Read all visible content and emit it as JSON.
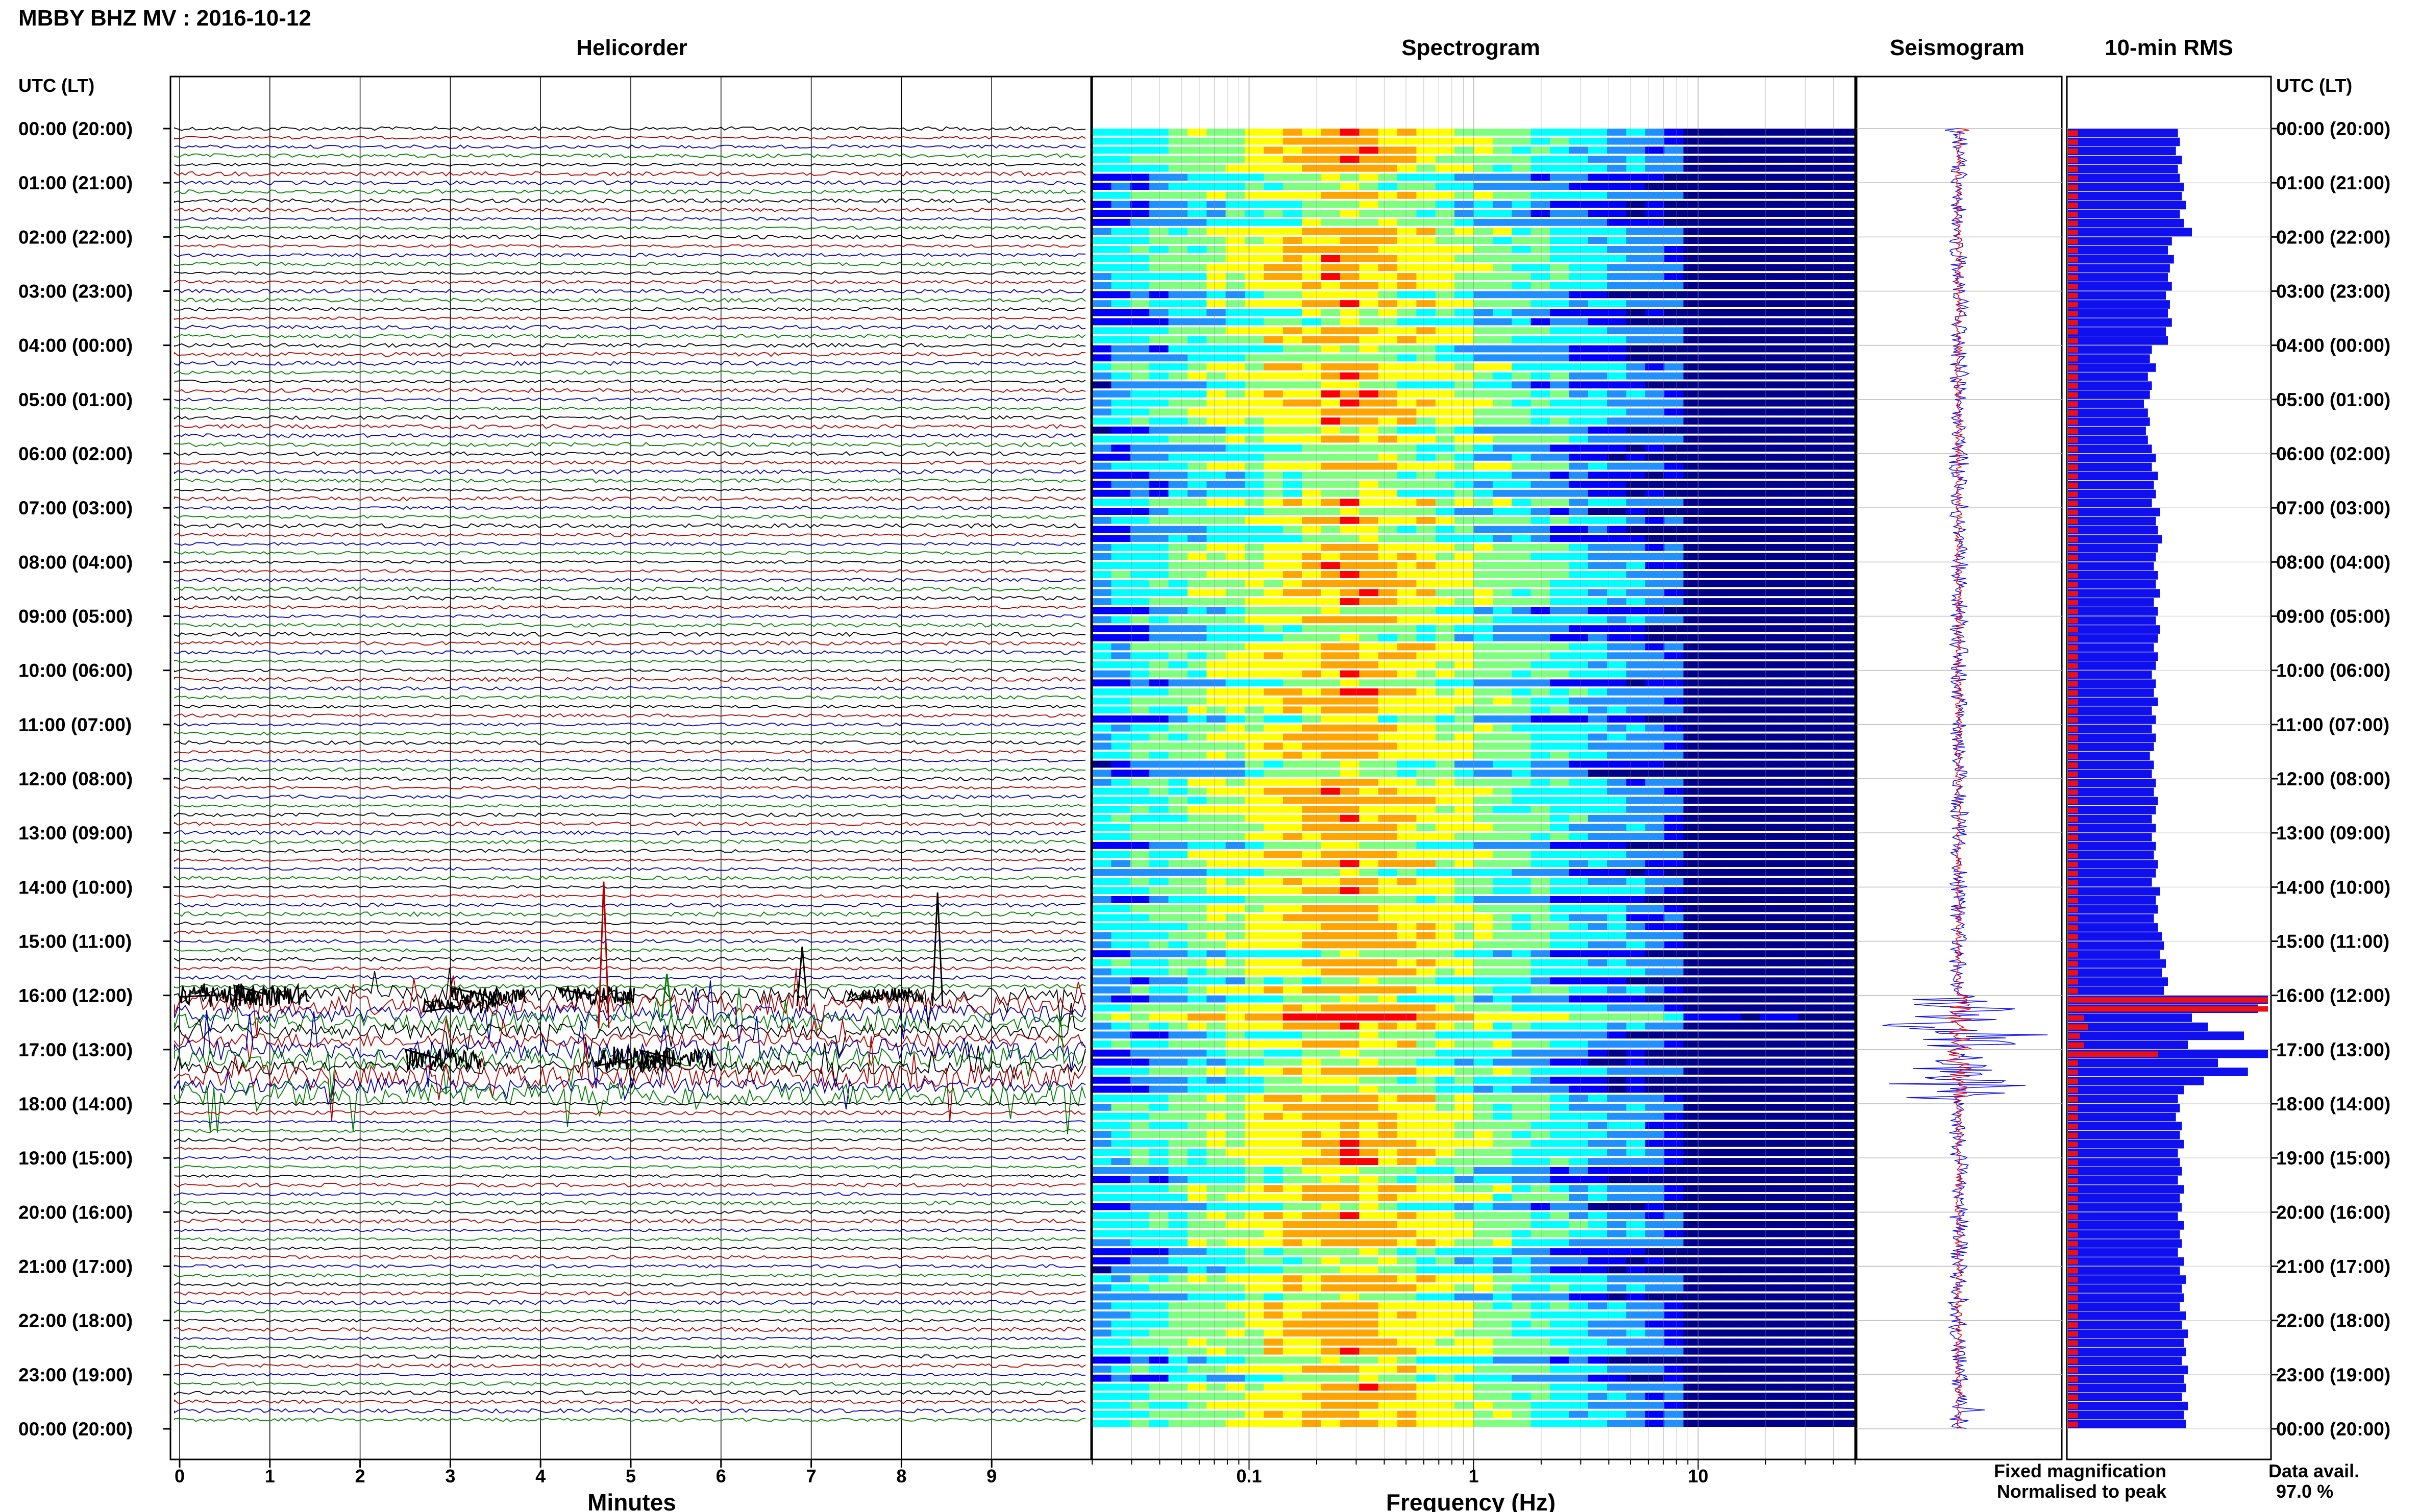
{
  "header": {
    "station_title": "MBBY BHZ MV : 2016-10-12",
    "time_axis_label": "UTC (LT)"
  },
  "panels": {
    "helicorder_title": "Helicorder",
    "spectrogram_title": "Spectrogram",
    "seismogram_title": "Seismogram",
    "rms_title": "10-min RMS"
  },
  "legend": {
    "fixed": "Fixed magnification",
    "normalised": "Normalised to peak",
    "fixed_color": "#1010ee",
    "normalised_color": "#ee1010"
  },
  "data_availability": {
    "label": "Data avail.",
    "value": "97.0 %"
  },
  "chart_data": [
    {
      "type": "line",
      "name": "helicorder",
      "title": "Helicorder",
      "xlabel": "Minutes",
      "x_ticks": [
        "0",
        "1",
        "2",
        "3",
        "4",
        "5",
        "6",
        "7",
        "8",
        "9"
      ],
      "xlim": [
        0,
        10
      ],
      "y_ticks": [
        "00:00 (20:00)",
        "01:00 (21:00)",
        "02:00 (22:00)",
        "03:00 (23:00)",
        "04:00 (00:00)",
        "05:00 (01:00)",
        "06:00 (02:00)",
        "07:00 (03:00)",
        "08:00 (04:00)",
        "09:00 (05:00)",
        "10:00 (06:00)",
        "11:00 (07:00)",
        "12:00 (08:00)",
        "13:00 (09:00)",
        "14:00 (10:00)",
        "15:00 (11:00)",
        "16:00 (12:00)",
        "17:00 (13:00)",
        "18:00 (14:00)",
        "19:00 (15:00)",
        "20:00 (16:00)",
        "21:00 (17:00)",
        "22:00 (18:00)",
        "23:00 (19:00)",
        "00:00 (20:00)"
      ],
      "trace_colors": [
        "#000000",
        "#b00000",
        "#0000b0",
        "#008000"
      ],
      "lines_per_hour": 6,
      "active_period_utc": [
        "16:00",
        "17:50"
      ]
    },
    {
      "type": "heatmap",
      "name": "spectrogram",
      "title": "Spectrogram",
      "xlabel": "Frequency (Hz)",
      "x_scale": "log",
      "xlim": [
        0.02,
        50
      ],
      "x_ticks": [
        "0.1",
        "1",
        "10"
      ],
      "x_tick_values": [
        0.1,
        1,
        10
      ],
      "colormap": [
        "#00008b",
        "#0000ff",
        "#1e90ff",
        "#00ffff",
        "#7fff7f",
        "#ffff00",
        "#ffa500",
        "#ff0000"
      ],
      "peak_band_hz": [
        0.15,
        0.5
      ]
    },
    {
      "type": "line",
      "name": "seismogram",
      "title": "Seismogram",
      "series": [
        {
          "name": "Fixed magnification",
          "color": "#1010ee"
        },
        {
          "name": "Normalised to peak",
          "color": "#ee1010"
        }
      ]
    },
    {
      "type": "bar",
      "name": "10-min-rms",
      "title": "10-min RMS",
      "orientation": "horizontal",
      "intervals_per_hour": 6,
      "series": [
        {
          "name": "Fixed magnification",
          "color": "#1010ee",
          "values": [
            0.55,
            0.56,
            0.54,
            0.57,
            0.55,
            0.56,
            0.58,
            0.57,
            0.59,
            0.56,
            0.58,
            0.62,
            0.52,
            0.5,
            0.53,
            0.51,
            0.5,
            0.52,
            0.49,
            0.51,
            0.5,
            0.52,
            0.49,
            0.5,
            0.42,
            0.41,
            0.44,
            0.4,
            0.42,
            0.41,
            0.38,
            0.4,
            0.41,
            0.39,
            0.4,
            0.42,
            0.44,
            0.42,
            0.45,
            0.43,
            0.44,
            0.42,
            0.46,
            0.44,
            0.45,
            0.47,
            0.45,
            0.44,
            0.43,
            0.45,
            0.44,
            0.46,
            0.43,
            0.45,
            0.44,
            0.46,
            0.45,
            0.43,
            0.45,
            0.44,
            0.42,
            0.44,
            0.43,
            0.45,
            0.42,
            0.44,
            0.42,
            0.44,
            0.43,
            0.41,
            0.43,
            0.42,
            0.44,
            0.43,
            0.45,
            0.44,
            0.42,
            0.44,
            0.42,
            0.44,
            0.43,
            0.45,
            0.44,
            0.42,
            0.46,
            0.44,
            0.45,
            0.43,
            0.45,
            0.47,
            0.48,
            0.46,
            0.49,
            0.47,
            0.5,
            0.48,
            1.0,
            0.95,
            0.62,
            0.7,
            0.88,
            0.6,
            1.0,
            0.75,
            0.9,
            0.68,
            0.58,
            0.55,
            0.56,
            0.54,
            0.57,
            0.56,
            0.58,
            0.55,
            0.56,
            0.57,
            0.55,
            0.58,
            0.56,
            0.57,
            0.55,
            0.58,
            0.56,
            0.57,
            0.55,
            0.58,
            0.56,
            0.59,
            0.57,
            0.58,
            0.56,
            0.59,
            0.57,
            0.6,
            0.58,
            0.59,
            0.57,
            0.6,
            0.58,
            0.59,
            0.57,
            0.6,
            0.58,
            0.59
          ]
        },
        {
          "name": "Normalised to peak",
          "color": "#ee1010",
          "values": [
            0.05,
            0.05,
            0.05,
            0.05,
            0.05,
            0.05,
            0.05,
            0.05,
            0.05,
            0.05,
            0.05,
            0.05,
            0.05,
            0.05,
            0.05,
            0.05,
            0.05,
            0.05,
            0.05,
            0.05,
            0.05,
            0.05,
            0.05,
            0.05,
            0.05,
            0.05,
            0.05,
            0.05,
            0.05,
            0.05,
            0.05,
            0.05,
            0.05,
            0.05,
            0.05,
            0.05,
            0.05,
            0.05,
            0.05,
            0.05,
            0.05,
            0.05,
            0.05,
            0.05,
            0.05,
            0.05,
            0.05,
            0.05,
            0.05,
            0.05,
            0.05,
            0.05,
            0.05,
            0.05,
            0.05,
            0.05,
            0.05,
            0.05,
            0.05,
            0.05,
            0.05,
            0.05,
            0.05,
            0.05,
            0.05,
            0.05,
            0.05,
            0.05,
            0.05,
            0.05,
            0.05,
            0.05,
            0.05,
            0.05,
            0.05,
            0.05,
            0.05,
            0.05,
            0.05,
            0.05,
            0.05,
            0.05,
            0.05,
            0.05,
            0.05,
            0.05,
            0.05,
            0.05,
            0.05,
            0.05,
            0.05,
            0.05,
            0.05,
            0.05,
            0.05,
            0.05,
            1.0,
            1.0,
            0.08,
            0.1,
            0.06,
            0.08,
            0.45,
            0.05,
            0.05,
            0.05,
            0.05,
            0.05,
            0.05,
            0.05,
            0.05,
            0.05,
            0.05,
            0.05,
            0.05,
            0.05,
            0.05,
            0.05,
            0.05,
            0.05,
            0.05,
            0.05,
            0.05,
            0.05,
            0.05,
            0.05,
            0.05,
            0.05,
            0.05,
            0.05,
            0.05,
            0.05,
            0.05,
            0.05,
            0.05,
            0.05,
            0.05,
            0.05,
            0.05,
            0.05,
            0.05,
            0.05,
            0.05,
            0.05
          ]
        }
      ]
    }
  ]
}
